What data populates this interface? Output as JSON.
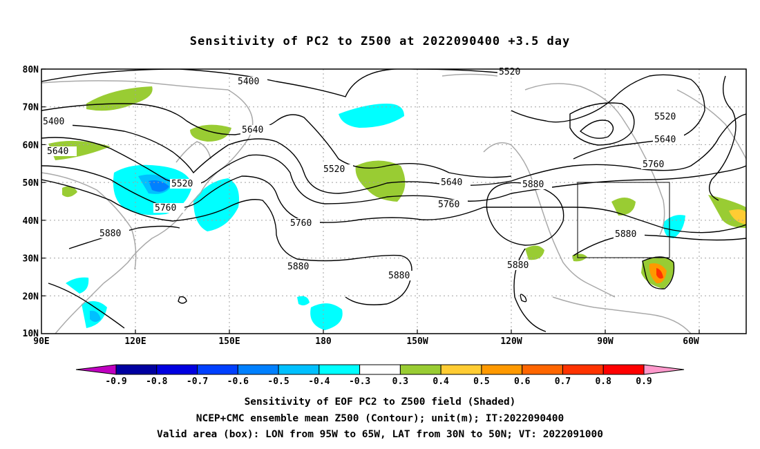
{
  "title": "Sensitivity of PC2 to Z500 at 2022090400 +3.5 day",
  "map": {
    "lat_labels": [
      "80N",
      "70N",
      "60N",
      "50N",
      "40N",
      "30N",
      "20N",
      "10N"
    ],
    "lon_labels": [
      "90E",
      "120E",
      "150E",
      "180",
      "150W",
      "120W",
      "90W",
      "60W"
    ],
    "contour_labels": [
      "5400",
      "5520",
      "5640",
      "5760",
      "5880",
      "5520",
      "5640",
      "5760",
      "5880",
      "5880",
      "5880",
      "5400",
      "5520",
      "5640",
      "5760",
      "5880",
      "5880",
      "5520"
    ],
    "box": {
      "lon": [
        "95W",
        "65W"
      ],
      "lat": [
        "30N",
        "50N"
      ]
    },
    "colors": {
      "coast": "#a9a9a9",
      "contour": "#000000",
      "grid": "#a0a0a0"
    }
  },
  "colorbar": {
    "labels": [
      "-0.9",
      "-0.8",
      "-0.7",
      "-0.6",
      "-0.5",
      "-0.4",
      "-0.3",
      "0.3",
      "0.4",
      "0.5",
      "0.6",
      "0.7",
      "0.8",
      "0.9"
    ],
    "colors": [
      "#c000c0",
      "#0000a0",
      "#0000e0",
      "#0040ff",
      "#0080ff",
      "#00c0ff",
      "#00ffff",
      "#ffffff",
      "#99cc33",
      "#ffcc33",
      "#ff9900",
      "#ff6600",
      "#ff3300",
      "#ff0000",
      "#ff99cc"
    ]
  },
  "captions": {
    "line1": "Sensitivity of EOF PC2 to Z500 field (Shaded)",
    "line2": "NCEP+CMC ensemble mean Z500 (Contour); unit(m); IT:2022090400",
    "line3": "Valid area (box): LON from 95W to 65W, LAT from 30N to 50N; VT: 2022091000"
  }
}
